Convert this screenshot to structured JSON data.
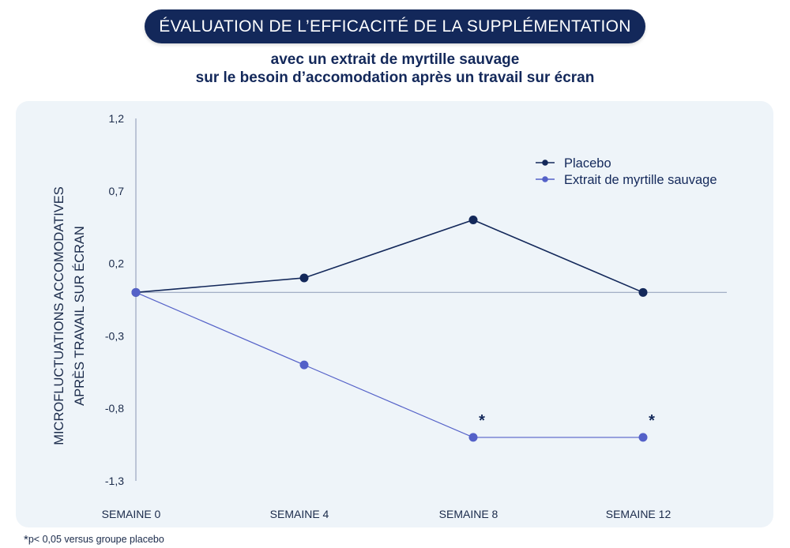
{
  "header": {
    "title": "ÉVALUATION DE L’EFFICACITÉ DE LA SUPPLÉMENTATION",
    "subtitle_line1": "avec un extrait de myrtille sauvage",
    "subtitle_line2": "sur le besoin d’accomodation après un travail sur écran"
  },
  "footnote": {
    "star": "*",
    "text": "p< 0,05 versus groupe placebo"
  },
  "colors": {
    "title_bg": "#13285a",
    "panel_bg": "#eef4f9",
    "placebo": "#13285a",
    "extrait": "#5461c8",
    "axis": "#9aa6bf"
  },
  "chart_data": {
    "type": "line",
    "categories": [
      "SEMAINE 0",
      "SEMAINE 4",
      "SEMAINE 8",
      "SEMAINE 12"
    ],
    "ylabel_line1": "MICROFLUCTUATIONS ACCOMODATIVES",
    "ylabel_line2": "APRÈS TRAVAIL SUR ÉCRAN",
    "ylim": [
      -1.3,
      1.2
    ],
    "yticks": [
      1.2,
      0.7,
      0.2,
      -0.3,
      -0.8,
      -1.3
    ],
    "ytick_labels": [
      "1,2",
      "0,7",
      "0,2",
      "-0,3",
      "-0,8",
      "-1,3"
    ],
    "baseline": 0,
    "legend_position": "top-right",
    "series": [
      {
        "name": "Placebo",
        "values": [
          0,
          0.1,
          0.5,
          0
        ],
        "significance": [
          "",
          "",
          "",
          ""
        ]
      },
      {
        "name": "Extrait de myrtille sauvage",
        "values": [
          0,
          -0.5,
          -1.0,
          -1.0
        ],
        "significance": [
          "",
          "",
          "*",
          "*"
        ]
      }
    ]
  }
}
